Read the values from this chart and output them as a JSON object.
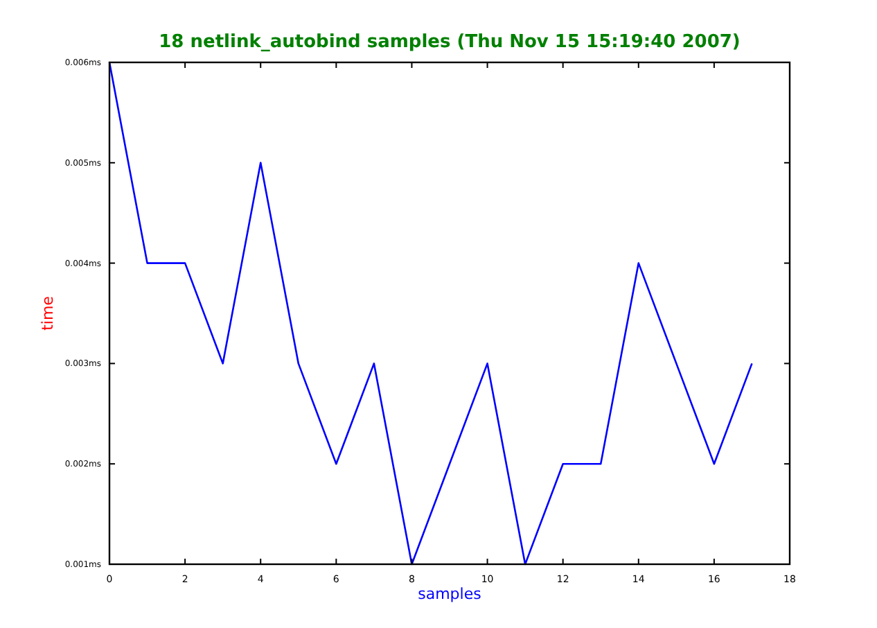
{
  "chart_data": {
    "type": "line",
    "title": "18 netlink_autobind samples (Thu Nov 15 15:19:40 2007)",
    "xlabel": "samples",
    "ylabel": "time",
    "x": [
      0,
      1,
      2,
      3,
      4,
      5,
      6,
      7,
      8,
      9,
      10,
      11,
      12,
      13,
      14,
      15,
      16,
      17
    ],
    "series": [
      {
        "color": "#0000ff",
        "values": [
          0.006,
          0.004,
          0.004,
          0.003,
          0.005,
          0.003,
          0.002,
          0.003,
          0.001,
          0.002,
          0.003,
          0.001,
          0.002,
          0.002,
          0.004,
          0.003,
          0.002,
          0.003
        ]
      }
    ],
    "xlim": [
      0,
      18
    ],
    "xticks": [
      0,
      2,
      4,
      6,
      8,
      10,
      12,
      14,
      16,
      18
    ],
    "ylim": [
      0.001,
      0.006
    ],
    "yticks": [
      {
        "value": 0.001,
        "label": "0.001ms"
      },
      {
        "value": 0.002,
        "label": "0.002ms"
      },
      {
        "value": 0.003,
        "label": "0.003ms"
      },
      {
        "value": 0.004,
        "label": "0.004ms"
      },
      {
        "value": 0.005,
        "label": "0.005ms"
      },
      {
        "value": 0.006,
        "label": "0.006ms"
      }
    ],
    "grid": false,
    "marker": "none",
    "line_style": "solid"
  }
}
